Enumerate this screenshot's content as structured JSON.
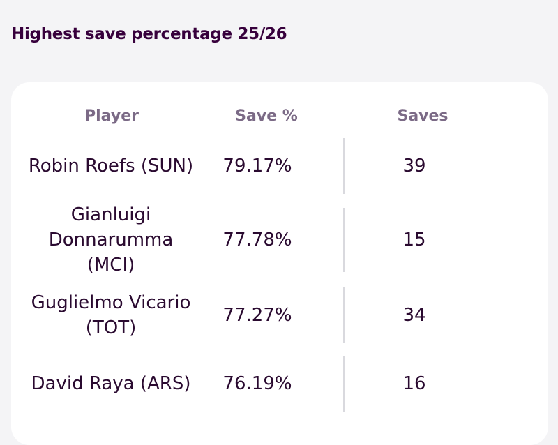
{
  "title": "Highest save percentage 25/26",
  "chart_data": {
    "type": "table",
    "title": "Highest save percentage 25/26",
    "columns": [
      "Player",
      "Save %",
      "Saves"
    ],
    "rows": [
      {
        "player": "Robin Roefs (SUN)",
        "save_pct": "79.17%",
        "saves": "39"
      },
      {
        "player": "Gianluigi Donnarumma (MCI)",
        "save_pct": "77.78%",
        "saves": "15"
      },
      {
        "player": "Guglielmo Vicario (TOT)",
        "save_pct": "77.27%",
        "saves": "34"
      },
      {
        "player": "David Raya (ARS)",
        "save_pct": "76.19%",
        "saves": "16"
      }
    ]
  },
  "colors": {
    "title": "#37003c",
    "header": "#7b6a86",
    "text": "#2a0a30",
    "divider": "#d9d9de",
    "card": "#ffffff",
    "background": "#f4f4f6"
  }
}
